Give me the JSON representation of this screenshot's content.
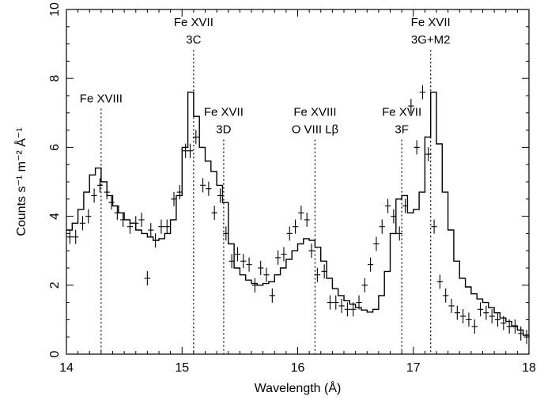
{
  "chart_data": {
    "type": "line",
    "xlabel": "Wavelength (Å)",
    "ylabel": "Counts s⁻¹ m⁻² Å⁻¹",
    "xlim": [
      14,
      18
    ],
    "ylim": [
      0,
      10
    ],
    "x_ticks": [
      14,
      15,
      16,
      17,
      18
    ],
    "y_ticks": [
      0,
      2,
      4,
      6,
      8,
      10
    ],
    "grid": false,
    "annotations": [
      {
        "x": 14.3,
        "lines": [
          "Fe XVIII"
        ],
        "label_y": 7.4
      },
      {
        "x": 15.1,
        "lines": [
          "Fe XVII",
          "3C"
        ],
        "label_y": 9.1
      },
      {
        "x": 15.36,
        "lines": [
          "Fe XVII",
          "3D"
        ],
        "label_y": 6.5
      },
      {
        "x": 16.15,
        "lines": [
          "Fe XVIII",
          "O VIII Lβ"
        ],
        "label_y": 6.5
      },
      {
        "x": 16.9,
        "lines": [
          "Fe XVII",
          "3F"
        ],
        "label_y": 6.5
      },
      {
        "x": 17.15,
        "lines": [
          "Fe XVII",
          "3G+M2"
        ],
        "label_y": 9.1
      }
    ],
    "series": [
      {
        "style": "step",
        "x": [
          14.0,
          14.05,
          14.1,
          14.15,
          14.2,
          14.25,
          14.3,
          14.35,
          14.4,
          14.45,
          14.5,
          14.55,
          14.6,
          14.65,
          14.7,
          14.75,
          14.8,
          14.85,
          14.9,
          14.95,
          15.0,
          15.05,
          15.1,
          15.15,
          15.2,
          15.25,
          15.3,
          15.35,
          15.4,
          15.45,
          15.5,
          15.55,
          15.6,
          15.65,
          15.7,
          15.75,
          15.8,
          15.85,
          15.9,
          15.95,
          16.0,
          16.05,
          16.1,
          16.15,
          16.2,
          16.25,
          16.3,
          16.35,
          16.4,
          16.45,
          16.5,
          16.55,
          16.6,
          16.65,
          16.7,
          16.75,
          16.8,
          16.85,
          16.9,
          16.95,
          17.0,
          17.05,
          17.1,
          17.15,
          17.2,
          17.25,
          17.3,
          17.35,
          17.4,
          17.45,
          17.5,
          17.55,
          17.6,
          17.65,
          17.7,
          17.75,
          17.8,
          17.85,
          17.9,
          17.95
        ],
        "y": [
          3.6,
          3.8,
          4.2,
          4.7,
          5.2,
          5.4,
          5.0,
          4.6,
          4.3,
          4.1,
          3.9,
          3.8,
          3.6,
          3.5,
          3.4,
          3.3,
          3.35,
          3.5,
          3.9,
          4.6,
          6.0,
          7.6,
          6.9,
          6.0,
          5.6,
          5.3,
          4.9,
          4.4,
          3.2,
          2.5,
          2.3,
          2.15,
          2.05,
          2.0,
          2.05,
          2.1,
          2.3,
          2.5,
          2.75,
          3.0,
          3.2,
          3.35,
          3.3,
          3.1,
          2.7,
          2.2,
          1.9,
          1.7,
          1.55,
          1.45,
          1.35,
          1.28,
          1.22,
          1.3,
          1.7,
          2.4,
          3.5,
          4.5,
          4.6,
          4.1,
          4.2,
          4.7,
          6.3,
          7.6,
          6.1,
          4.7,
          3.6,
          2.7,
          2.2,
          1.95,
          1.75,
          1.6,
          1.5,
          1.35,
          1.2,
          1.05,
          0.95,
          0.82,
          0.7,
          0.55
        ]
      },
      {
        "style": "crosses",
        "x": [
          14.03,
          14.08,
          14.14,
          14.19,
          14.24,
          14.29,
          14.35,
          14.39,
          14.44,
          14.49,
          14.55,
          14.6,
          14.65,
          14.7,
          14.73,
          14.77,
          14.82,
          14.87,
          14.93,
          14.98,
          15.03,
          15.07,
          15.12,
          15.18,
          15.23,
          15.28,
          15.33,
          15.38,
          15.43,
          15.48,
          15.53,
          15.58,
          15.63,
          15.68,
          15.73,
          15.78,
          15.83,
          15.88,
          15.93,
          15.98,
          16.03,
          16.08,
          16.12,
          16.17,
          16.23,
          16.28,
          16.33,
          16.38,
          16.43,
          16.48,
          16.53,
          16.58,
          16.63,
          16.68,
          16.73,
          16.78,
          16.83,
          16.88,
          16.93,
          16.98,
          17.03,
          17.08,
          17.13,
          17.18,
          17.23,
          17.28,
          17.33,
          17.38,
          17.43,
          17.48,
          17.53,
          17.58,
          17.63,
          17.68,
          17.73,
          17.78,
          17.83,
          17.88,
          17.93,
          17.98
        ],
        "y": [
          3.4,
          3.4,
          3.8,
          4.0,
          4.6,
          4.9,
          4.7,
          4.4,
          4.1,
          3.9,
          3.7,
          3.8,
          3.9,
          2.2,
          3.6,
          3.3,
          3.7,
          3.7,
          4.5,
          4.7,
          5.9,
          5.9,
          6.3,
          4.9,
          4.8,
          4.1,
          4.6,
          3.5,
          2.7,
          2.9,
          2.7,
          2.6,
          2.0,
          2.5,
          2.3,
          1.7,
          2.8,
          2.9,
          3.5,
          3.7,
          4.1,
          3.9,
          3.0,
          2.3,
          2.4,
          1.5,
          1.5,
          1.4,
          1.3,
          1.3,
          1.5,
          2.0,
          2.6,
          3.2,
          3.7,
          4.3,
          4.0,
          3.5,
          4.3,
          7.2,
          6.0,
          7.6,
          5.8,
          3.7,
          2.1,
          1.7,
          1.4,
          1.2,
          1.1,
          1.0,
          0.8,
          1.3,
          1.2,
          1.1,
          1.0,
          0.9,
          0.8,
          0.8,
          0.6,
          0.5
        ]
      }
    ]
  }
}
